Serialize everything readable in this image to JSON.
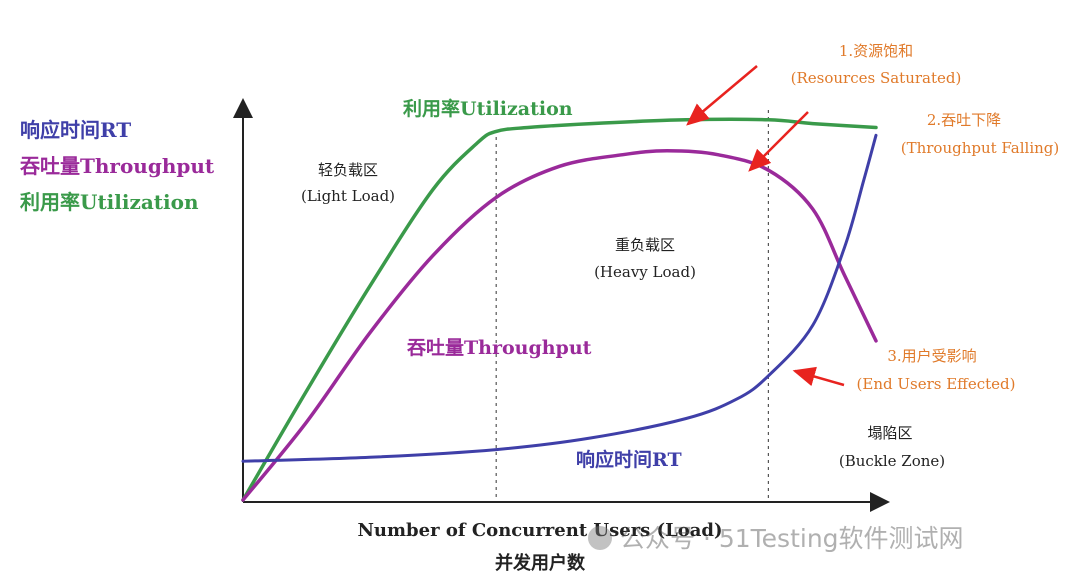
{
  "legend": [
    {
      "label": "响应时间RT",
      "color": "#3f3fa8"
    },
    {
      "label": "吞吐量Throughput",
      "color": "#9a2a9a"
    },
    {
      "label": "利用率Utilization",
      "color": "#3a9a4a"
    }
  ],
  "axes": {
    "xlabel_en": "Number of Concurrent Users (Load)",
    "xlabel_cn": "并发用户数"
  },
  "zones": [
    {
      "name_cn": "轻负载区",
      "name_en": "(Light Load)"
    },
    {
      "name_cn": "重负载区",
      "name_en": "(Heavy Load)"
    },
    {
      "name_cn": "塌陷区",
      "name_en": "(Buckle Zone)"
    }
  ],
  "annotations": [
    {
      "title": "1.资源饱和",
      "subtitle": "(Resources Saturated)",
      "color": "#e07a2a"
    },
    {
      "title": "2.吞吐下降",
      "subtitle": "(Throughput Falling)",
      "color": "#e07a2a"
    },
    {
      "title": "3.用户受影响",
      "subtitle": "(End Users Effected)",
      "color": "#e07a2a"
    }
  ],
  "curve_labels": {
    "utilization": "利用率Utilization",
    "throughput": "吞吐量Throughput",
    "rt": "响应时间RT"
  },
  "watermark": {
    "text": "公众号 · 51Testing软件测试网"
  },
  "chart_data": {
    "type": "line",
    "title": "",
    "xlabel": "Number of Concurrent Users (Load) 并发用户数",
    "ylabel": "",
    "xlim": [
      0,
      100
    ],
    "ylim": [
      0,
      100
    ],
    "zone_boundaries": [
      40,
      83
    ],
    "arrow_color": "#e8231f",
    "series": [
      {
        "name": "响应时间RT",
        "color": "#3f3fa8",
        "x": [
          0,
          20,
          40,
          55,
          70,
          78,
          83,
          90,
          95,
          98,
          100
        ],
        "y": [
          10,
          11,
          13,
          16,
          21,
          26,
          32,
          45,
          65,
          82,
          94
        ]
      },
      {
        "name": "吞吐量Throughput",
        "color": "#9a2a9a",
        "x": [
          0,
          10,
          20,
          30,
          40,
          50,
          60,
          67,
          75,
          83,
          90,
          95,
          100
        ],
        "y": [
          0,
          20,
          43,
          63,
          78,
          86,
          89,
          90,
          89,
          85,
          75,
          58,
          41
        ]
      },
      {
        "name": "利用率Utilization",
        "color": "#3a9a4a",
        "x": [
          0,
          10,
          20,
          30,
          37,
          40,
          45,
          55,
          70,
          83,
          90,
          100
        ],
        "y": [
          0,
          28,
          55,
          80,
          92,
          95,
          96,
          97,
          98,
          98,
          97,
          96
        ]
      }
    ]
  }
}
